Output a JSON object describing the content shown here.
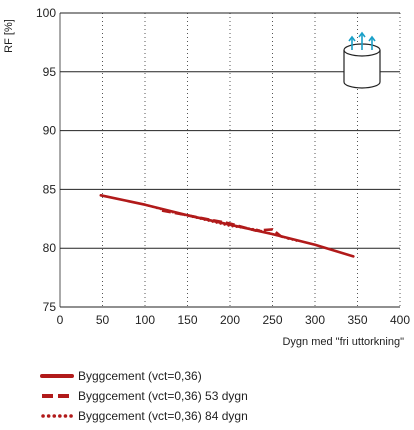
{
  "chart_data": {
    "type": "line",
    "xlabel": "Dygn med \"fri uttorkning\"",
    "ylabel": "RF [%]",
    "xlim": [
      0,
      400
    ],
    "ylim": [
      75,
      100
    ],
    "x_ticks": [
      "0",
      "50",
      "100",
      "150",
      "200",
      "250",
      "300",
      "350",
      "400"
    ],
    "y_ticks": [
      "75",
      "80",
      "85",
      "90",
      "95",
      "100"
    ],
    "grid": {
      "horizontal": "solid",
      "vertical": "dotted"
    },
    "legend_position": "below",
    "series": [
      {
        "name": "Byggcement (vct=0,36)",
        "style": "solid",
        "color": "#b11a1a",
        "x": [
          48,
          100,
          150,
          200,
          250,
          300,
          345
        ],
        "y": [
          84.5,
          83.7,
          82.8,
          82.0,
          81.2,
          80.3,
          79.3
        ]
      },
      {
        "name": "Byggcement (vct=0,36) 53 dygn",
        "style": "dashed",
        "color": "#b11a1a",
        "x": [
          120,
          150,
          200,
          230,
          250,
          260,
          270
        ],
        "y": [
          83.2,
          82.8,
          82.1,
          81.5,
          81.6,
          81.0,
          80.8
        ]
      },
      {
        "name": "Byggcement (vct=0,36) 84 dygn",
        "style": "dotted",
        "color": "#b11a1a",
        "x": [
          100,
          130,
          160,
          200,
          230,
          260,
          280
        ],
        "y": [
          83.7,
          83.1,
          82.6,
          81.9,
          81.6,
          81.0,
          80.6
        ]
      }
    ]
  }
}
